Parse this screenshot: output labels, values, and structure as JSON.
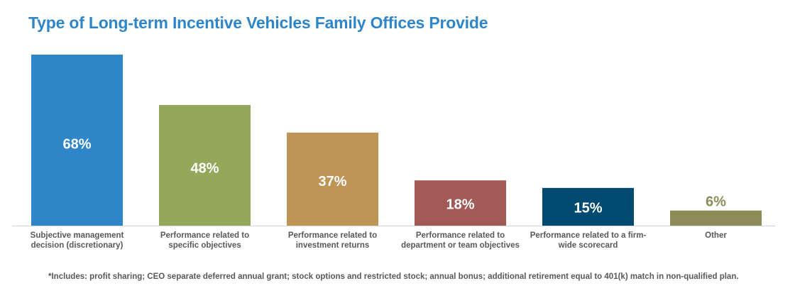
{
  "chart_data": {
    "type": "bar",
    "title": "Type of Long-term Incentive Vehicles Family Offices Provide",
    "xlabel": "",
    "ylabel": "",
    "ylim": [
      0,
      68
    ],
    "grid": false,
    "categories": [
      [
        "Subjective management",
        "decision (discretionary)"
      ],
      [
        "Performance related to",
        "specific objectives"
      ],
      [
        "Performance related to",
        "investment returns"
      ],
      [
        "Performance related to",
        "department or team objectives"
      ],
      [
        "Performance related to a firm-",
        "wide scorecard"
      ],
      [
        "Other"
      ]
    ],
    "values": [
      68,
      48,
      37,
      18,
      15,
      6
    ],
    "data_labels": [
      "68%",
      "48%",
      "37%",
      "18%",
      "15%",
      "6%"
    ],
    "colors": [
      "#2e86c9",
      "#93a85a",
      "#be9555",
      "#a25a56",
      "#004a72",
      "#8d8b58"
    ],
    "label_outside_color": "#8d8b58",
    "footnote": "*Includes: profit sharing; CEO separate deferred annual grant; stock options and restricted stock; annual bonus; additional retirement equal to 401(k) match in non-qualified plan."
  }
}
